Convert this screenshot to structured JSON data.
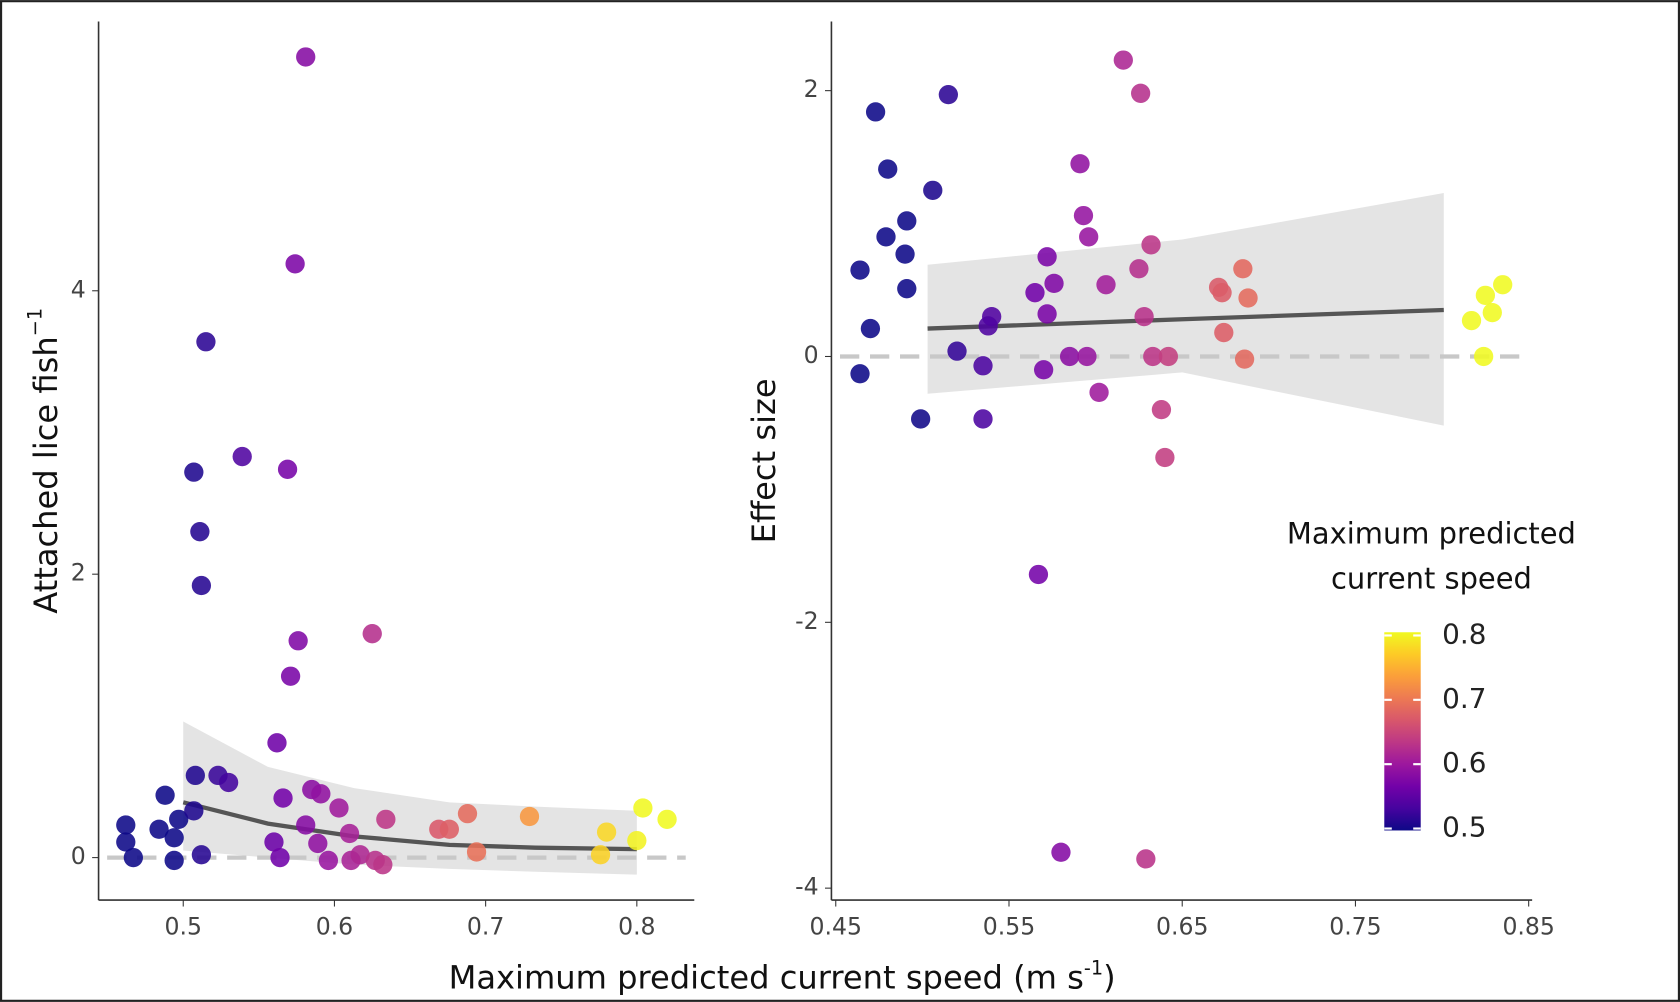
{
  "shared_x_label": {
    "text": "Maximum predicted current speed (m s",
    "sup": "-1",
    "end": ")"
  },
  "chart_data": [
    {
      "type": "scatter",
      "y_label": "Attached lice fish",
      "y_label_sup": "−1",
      "xlim": [
        0.444,
        0.838
      ],
      "xticks": [
        0.5,
        0.6,
        0.7,
        0.8
      ],
      "ylim": [
        -0.3,
        5.9
      ],
      "yticks": [
        0,
        2,
        4
      ],
      "zero_line": true,
      "x": [
        0.462,
        0.462,
        0.467,
        0.484,
        0.488,
        0.494,
        0.494,
        0.497,
        0.507,
        0.508,
        0.512,
        0.523,
        0.53,
        0.507,
        0.511,
        0.512,
        0.515,
        0.539,
        0.581,
        0.574,
        0.569,
        0.576,
        0.571,
        0.562,
        0.566,
        0.56,
        0.564,
        0.581,
        0.585,
        0.591,
        0.589,
        0.596,
        0.603,
        0.61,
        0.611,
        0.617,
        0.625,
        0.634,
        0.627,
        0.632,
        0.669,
        0.676,
        0.688,
        0.694,
        0.729,
        0.776,
        0.78,
        0.8,
        0.804,
        0.82
      ],
      "values": [
        0.23,
        0.11,
        0,
        0.2,
        0.44,
        0.14,
        -0.02,
        0.27,
        0.33,
        0.58,
        0.02,
        0.58,
        0.53,
        2.72,
        2.3,
        1.92,
        3.64,
        2.83,
        5.65,
        4.19,
        2.74,
        1.53,
        1.28,
        0.81,
        0.42,
        0.11,
        0,
        0.23,
        0.48,
        0.45,
        0.1,
        -0.02,
        0.35,
        0.17,
        -0.02,
        0.02,
        1.58,
        0.27,
        -0.02,
        -0.05,
        0.2,
        0.2,
        0.31,
        0.04,
        0.29,
        0.02,
        0.18,
        0.12,
        0.35,
        0.27
      ],
      "fit": {
        "x": [
          0.5,
          0.556,
          0.613,
          0.676,
          0.733,
          0.8
        ],
        "values": [
          0.39,
          0.24,
          0.15,
          0.09,
          0.07,
          0.06
        ],
        "upper": [
          0.96,
          0.64,
          0.49,
          0.39,
          0.36,
          0.33
        ],
        "lower": [
          0.05,
          0.0,
          -0.05,
          -0.08,
          -0.1,
          -0.12
        ]
      }
    },
    {
      "type": "scatter",
      "y_label": "Effect size",
      "xlim": [
        0.4475,
        0.852
      ],
      "xticks": [
        0.45,
        0.55,
        0.65,
        0.75,
        0.85
      ],
      "ylim": [
        -4.09,
        2.52
      ],
      "yticks": [
        {
          "value": -4,
          "label": "-4"
        },
        {
          "value": -2,
          "label": "-2"
        },
        0,
        2
      ],
      "zero_line": true,
      "x": [
        0.464,
        0.47,
        0.464,
        0.473,
        0.48,
        0.479,
        0.491,
        0.49,
        0.491,
        0.506,
        0.515,
        0.499,
        0.52,
        0.535,
        0.535,
        0.54,
        0.538,
        0.565,
        0.572,
        0.576,
        0.572,
        0.57,
        0.567,
        0.58,
        0.591,
        0.593,
        0.596,
        0.585,
        0.595,
        0.602,
        0.606,
        0.616,
        0.626,
        0.625,
        0.632,
        0.628,
        0.629,
        0.633,
        0.642,
        0.638,
        0.64,
        0.671,
        0.673,
        0.674,
        0.685,
        0.688,
        0.686,
        0.825,
        0.817,
        0.829,
        0.835,
        0.824
      ],
      "values": [
        0.65,
        0.21,
        -0.13,
        1.84,
        1.41,
        0.9,
        1.02,
        0.77,
        0.51,
        1.25,
        1.97,
        -0.47,
        0.04,
        -0.47,
        -0.07,
        0.3,
        0.23,
        0.48,
        0.75,
        0.55,
        0.32,
        -0.1,
        -1.64,
        -3.73,
        1.45,
        1.06,
        0.9,
        0,
        0,
        -0.27,
        0.54,
        2.23,
        1.98,
        0.66,
        0.84,
        0.3,
        -3.78,
        0,
        0,
        -0.4,
        -0.76,
        0.52,
        0.48,
        0.18,
        0.66,
        0.44,
        -0.02,
        0.46,
        0.27,
        0.33,
        0.54,
        0
      ],
      "fit": {
        "x": [
          0.503,
          0.65,
          0.801
        ],
        "values": [
          0.21,
          0.28,
          0.35
        ],
        "upper": [
          0.69,
          0.88,
          1.23
        ],
        "lower": [
          -0.28,
          -0.12,
          -0.52
        ]
      },
      "colorbar": {
        "title": "Maximum predicted current speed",
        "lim": [
          0.497,
          0.805
        ],
        "ticks": [
          0.5,
          0.6,
          0.7,
          0.8
        ],
        "colormap": [
          "#0d0887",
          "#46039f",
          "#7201a8",
          "#9c179e",
          "#bd3786",
          "#d8576b",
          "#ed7953",
          "#fb9f3a",
          "#fdca26",
          "#f0f921"
        ]
      }
    }
  ]
}
